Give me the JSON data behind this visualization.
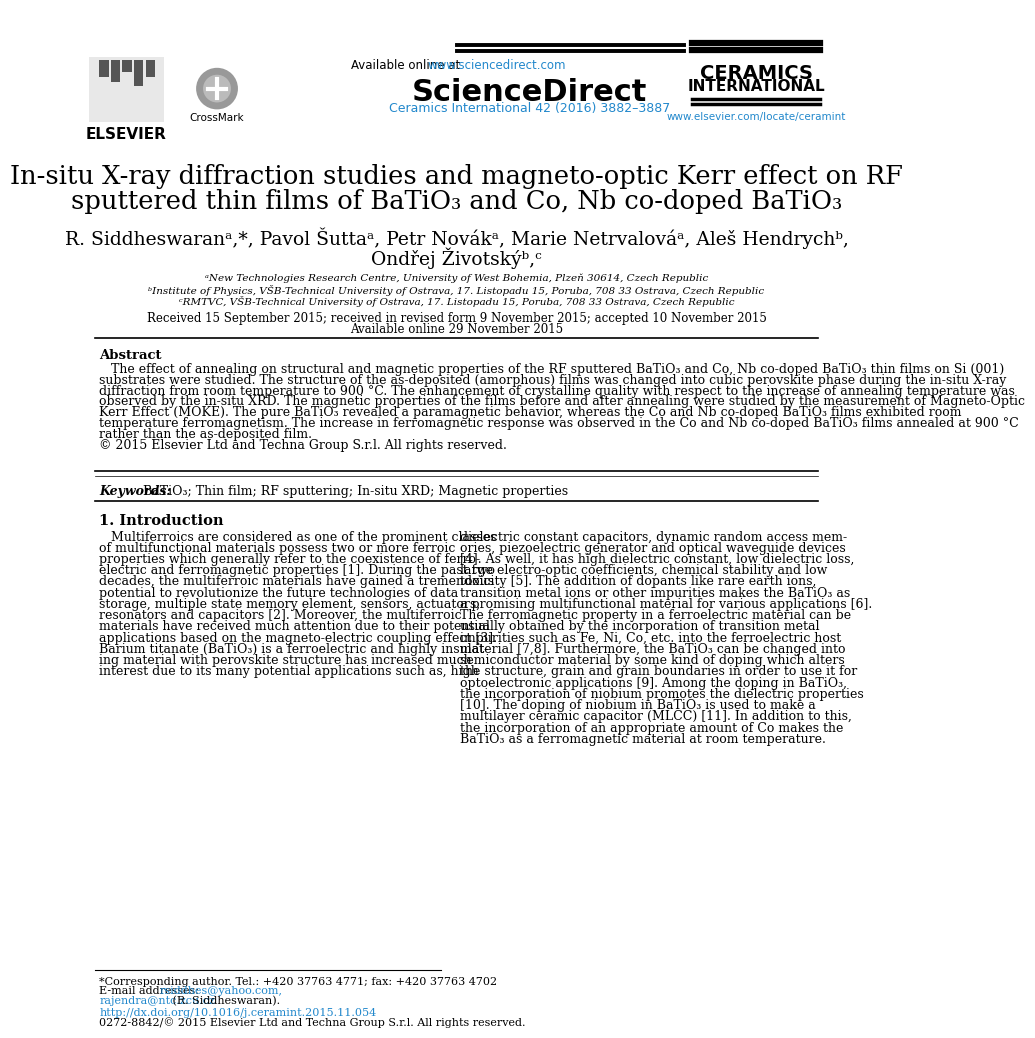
{
  "bg_color": "#ffffff",
  "link_color": "#2288cc",
  "title_line1": "In-situ X-ray diffraction studies and magneto-optic Kerr effect on RF",
  "title_line2": "sputtered thin films of BaTiO₃ and Co, Nb co-doped BaTiO₃",
  "authors_line1": "R. Siddheswaranᵃ,*, Pavol Šuttaᵃ, Petr Novákᵃ, Marie Netrvalováᵃ, Aleš Hendrychᵇ,",
  "authors_line2": "Ondřej Životskýᵇ,ᶜ",
  "affil_a": "ᵃNew Technologies Research Centre, University of West Bohemia, Plzeň 30614, Czech Republic",
  "affil_b": "ᵇInstitute of Physics, VŠB-Technical University of Ostrava, 17. Listopadu 15, Poruba, 708 33 Ostrava, Czech Republic",
  "affil_c": "ᶜRMTVC, VŠB-Technical University of Ostrava, 17. Listopadu 15, Poruba, 708 33 Ostrava, Czech Republic",
  "received": "Received 15 September 2015; received in revised form 9 November 2015; accepted 10 November 2015",
  "available": "Available online 29 November 2015",
  "abstract_title": "Abstract",
  "abstract_lines": [
    "   The effect of annealing on structural and magnetic properties of the RF sputtered BaTiO₃ and Co, Nb co-doped BaTiO₃ thin films on Si (001)",
    "substrates were studied. The structure of the as-deposited (amorphous) films was changed into cubic perovskite phase during the in-situ X-ray",
    "diffraction from room temperature to 900 °C. The enhancement of crystalline quality with respect to the increase of annealing temperature was",
    "observed by the in-situ XRD. The magnetic properties of the films before and after annealing were studied by the measurement of Magneto-Optic",
    "Kerr Effect (MOKE). The pure BaTiO₃ revealed a paramagnetic behavior, whereas the Co and Nb co-doped BaTiO₃ films exhibited room",
    "temperature ferromagnetism. The increase in ferromagnetic response was observed in the Co and Nb co-doped BaTiO₃ films annealed at 900 °C",
    "rather than the as-deposited film.",
    "© 2015 Elsevier Ltd and Techna Group S.r.l. All rights reserved."
  ],
  "keywords_label": "Keywords:",
  "keywords_text": " BaTiO₃; Thin film; RF sputtering; In-situ XRD; Magnetic properties",
  "section1_title": "1. Introduction",
  "left_col_lines": [
    "   Multiferroics are considered as one of the prominent classes",
    "of multifunctional materials possess two or more ferroic",
    "properties which generally refer to the coexistence of ferro-",
    "electric and ferromagnetic properties [1]. During the past two",
    "decades, the multiferroic materials have gained a tremendous",
    "potential to revolutionize the future technologies of data",
    "storage, multiple state memory element, sensors, actuators,",
    "resonators and capacitors [2]. Moreover, the multiferroic",
    "materials have received much attention due to their potential",
    "applications based on the magneto-electric coupling effect [3].",
    "Barium titanate (BaTiO₃) is a ferroelectric and highly insulat-",
    "ing material with perovskite structure has increased much",
    "interest due to its many potential applications such as, high"
  ],
  "right_col_lines": [
    "dielectric constant capacitors, dynamic random access mem-",
    "ories, piezoelectric generator and optical waveguide devices",
    "[4]. As well, it has high dielectric constant, low dielectric loss,",
    "large electro-optic coefficients, chemical stability and low",
    "toxicity [5]. The addition of dopants like rare earth ions,",
    "transition metal ions or other impurities makes the BaTiO₃ as",
    "a promising multifunctional material for various applications [6].",
    "The ferromagnetic property in a ferroelectric material can be",
    "usually obtained by the incorporation of transition metal",
    "impurities such as Fe, Ni, Co, etc. into the ferroelectric host",
    "material [7,8]. Furthermore, the BaTiO₃ can be changed into",
    "semiconductor material by some kind of doping which alters",
    "the structure, grain and grain boundaries in order to use it for",
    "optoelectronic applications [9]. Among the doping in BaTiO₃,",
    "the incorporation of niobium promotes the dielectric properties",
    "[10]. The doping of niobium in BaTiO₃ is used to make a",
    "multilayer ceramic capacitor (MLCC) [11]. In addition to this,",
    "the incorporation of an appropriate amount of Co makes the",
    "BaTiO₃ as a ferromagnetic material at room temperature."
  ],
  "footer_line1": "*Corresponding author. Tel.: +420 37763 4771; fax: +420 37763 4702",
  "footer_email_label": "E-mail addresses: ",
  "footer_email1": "rsiddhes@yahoo.com,",
  "footer_email2": "rajendra@ntc.zcu.cz",
  "footer_email2_suffix": " (R. Siddheswaran).",
  "footer_doi": "http://dx.doi.org/10.1016/j.ceramint.2015.11.054",
  "footer_issn": "0272-8842/© 2015 Elsevier Ltd and Techna Group S.r.l. All rights reserved.",
  "available_online_prefix": "Available online at  ",
  "available_online_link": "www.sciencedirect.com",
  "scidirect": "ScienceDirect",
  "journal_ref": "Ceramics International 42 (2016) 3882–3887",
  "ceramics1": "CERAMICS",
  "ceramics2": "INTERNATIONAL",
  "elsevier_url": "www.elsevier.com/locate/ceramint",
  "elsevier_label": "ELSEVIER",
  "crossmark_label": "CrossMark"
}
